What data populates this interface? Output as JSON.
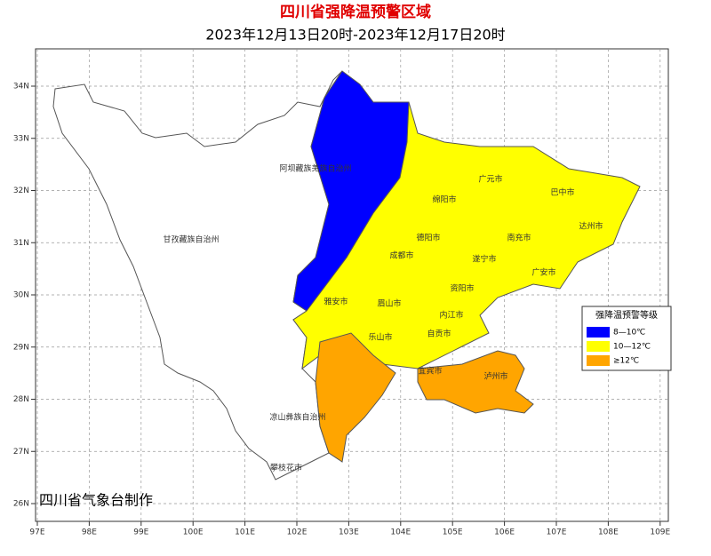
{
  "title": "四川省强降温预警区域",
  "subtitle": "2023年12月13日20时-2023年12月17日20时",
  "map": {
    "lon_ticks": [
      "97E",
      "98E",
      "99E",
      "100E",
      "101E",
      "102E",
      "103E",
      "104E",
      "105E",
      "106E",
      "107E",
      "108E",
      "109E"
    ],
    "lat_ticks": [
      "34N",
      "33N",
      "32N",
      "31N",
      "30N",
      "29N",
      "28N",
      "27N",
      "26N"
    ],
    "places": [
      "阿坝藏族羌族自治州",
      "甘孜藏族自治州",
      "凉山彝族自治州",
      "攀枝花市",
      "雅安市",
      "眉山市",
      "乐山市",
      "成都市",
      "德阳市",
      "绵阳市",
      "广元市",
      "巴中市",
      "达州市",
      "南充市",
      "遂宁市",
      "广安市",
      "资阳市",
      "内江市",
      "自贡市",
      "宜宾市",
      "泸州市"
    ]
  },
  "legend": {
    "title": "强降温预警等级",
    "items": [
      {
        "label": "8—10℃",
        "color": "#0000ff"
      },
      {
        "label": "10—12℃",
        "color": "#ffff00"
      },
      {
        "label": "≥12℃",
        "color": "#ffa500"
      }
    ]
  },
  "credit": "四川省气象台制作"
}
